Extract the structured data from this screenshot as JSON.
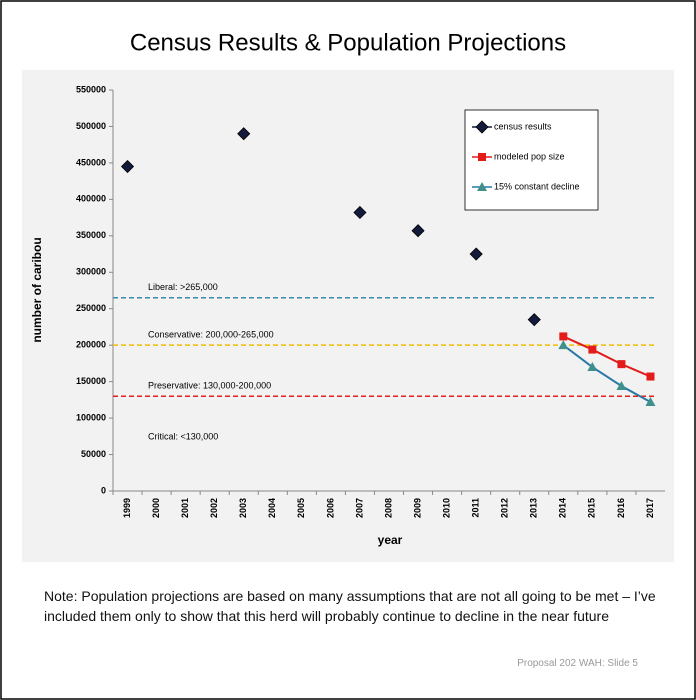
{
  "chart_data": {
    "type": "line",
    "title": "Census Results & Population Projections",
    "x_label": "year",
    "y_label": "number of caribou",
    "categories": [
      "1999",
      "2000",
      "2001",
      "2002",
      "2003",
      "2004",
      "2005",
      "2006",
      "2007",
      "2008",
      "2009",
      "2010",
      "2011",
      "2012",
      "2013",
      "2014",
      "2015",
      "2016",
      "2017"
    ],
    "series": [
      {
        "name": "census results",
        "color": "#141a3c",
        "marker": "diamond",
        "values": [
          445000,
          null,
          null,
          null,
          490000,
          null,
          null,
          null,
          382000,
          null,
          357000,
          null,
          325000,
          null,
          235000,
          null,
          null,
          null,
          null
        ]
      },
      {
        "name": "modeled pop size",
        "color": "#e31b1b",
        "marker": "square",
        "values": [
          null,
          null,
          null,
          null,
          null,
          null,
          null,
          null,
          null,
          null,
          null,
          null,
          null,
          null,
          null,
          212000,
          194000,
          174000,
          157000
        ]
      },
      {
        "name": "15% constant decline",
        "color": "#2a78a6",
        "marker": "triangle",
        "marker_color": "#3f8f8c",
        "values": [
          null,
          null,
          null,
          null,
          null,
          null,
          null,
          null,
          null,
          null,
          null,
          null,
          null,
          null,
          null,
          200000,
          170000,
          144000,
          122000
        ]
      }
    ],
    "ylim": [
      0,
      550000
    ],
    "yticks": [
      0,
      50000,
      100000,
      150000,
      200000,
      250000,
      300000,
      350000,
      400000,
      450000,
      500000,
      550000
    ],
    "reference_lines": [
      {
        "value": 265000,
        "label": "Liberal: >265,000",
        "color": "#3a87b8"
      },
      {
        "value": 200000,
        "label": "Conservative: 200,000-265,000",
        "color": "#f0c000"
      },
      {
        "value": 130000,
        "label": "Preservative: 130,000-200,000",
        "color": "#e0201b"
      }
    ],
    "annotations": [
      "Critical: <130,000"
    ],
    "legend": "upper right"
  },
  "note": "Note: Population projections are based on many assumptions that  are not all going to be met – I’ve included them only to show that this herd will probably continue to decline in the near future",
  "footer": "Proposal 202 WAH: Slide 5"
}
